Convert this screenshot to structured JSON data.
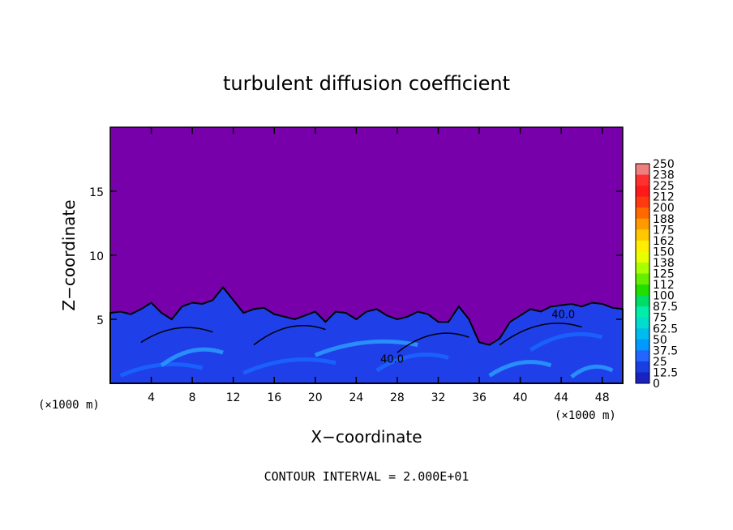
{
  "chart_data": {
    "type": "heatmap",
    "title": "turbulent diffusion coefficient",
    "xlabel": "X−coordinate",
    "ylabel": "Z−coordinate",
    "x_unit": "(×1000 m)",
    "y_unit": "(×1000 m)",
    "x_ticks": [
      4,
      8,
      12,
      16,
      20,
      24,
      28,
      32,
      36,
      40,
      44,
      48
    ],
    "y_ticks": [
      5,
      10,
      15
    ],
    "xlim": [
      0,
      50
    ],
    "ylim": [
      0,
      20
    ],
    "colorbar_levels": [
      "250",
      "238",
      "225",
      "212",
      "200",
      "188",
      "175",
      "162",
      "150",
      "138",
      "125",
      "112",
      "100",
      "87.5",
      "75",
      "62.5",
      "50",
      "37.5",
      "25",
      "12.5",
      "0"
    ],
    "colorbar_colors": [
      "#f08080",
      "#ff3030",
      "#ff1a1a",
      "#ff3a10",
      "#ff6a00",
      "#ff9a00",
      "#ffc800",
      "#ffee00",
      "#e8ff00",
      "#aaff00",
      "#66ee00",
      "#22dd00",
      "#00dd66",
      "#00eeaa",
      "#00ddcc",
      "#00bbee",
      "#0099ff",
      "#2266ff",
      "#1a3fe0",
      "#1a22c0",
      "#7700aa"
    ],
    "background_color": "#7700aa",
    "turbulent_layer_top": [
      5.5,
      5.6,
      5.4,
      5.8,
      6.3,
      5.5,
      5.0,
      6.0,
      6.3,
      6.2,
      6.5,
      7.5,
      6.5,
      5.5,
      5.8,
      5.9,
      5.4,
      5.2,
      5.0,
      5.3,
      5.6,
      4.8,
      5.6,
      5.5,
      5.0,
      5.6,
      5.8,
      5.3,
      5.0,
      5.2,
      5.6,
      5.4,
      4.8,
      4.8,
      6.0,
      5.0,
      3.2,
      3.0,
      3.5,
      4.8,
      5.3,
      5.8,
      5.6,
      6.0,
      6.1,
      6.2,
      6.0,
      6.3,
      6.2,
      5.9,
      5.8
    ],
    "contour_labels": [
      {
        "text": "40.0",
        "x": 27.5,
        "z": 1.6
      },
      {
        "text": "40.0",
        "x": 44.2,
        "z": 5.1
      }
    ],
    "contour_interval_text": "CONTOUR INTERVAL = 2.000E+01"
  }
}
